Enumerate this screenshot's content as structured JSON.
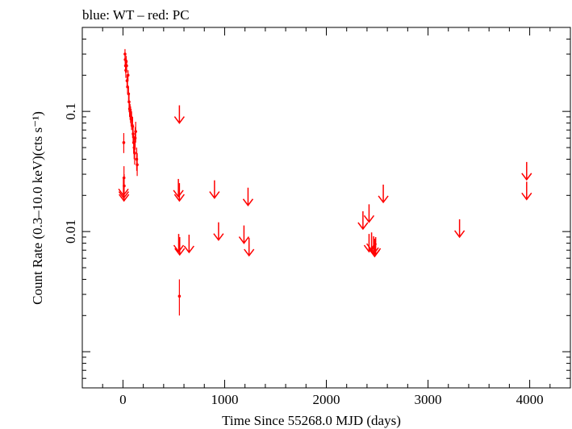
{
  "chart_data": {
    "type": "scatter",
    "title": "blue: WT – red: PC",
    "xlabel": "Time Since 55268.0 MJD (days)",
    "ylabel": "Count Rate (0.3–10.0 keV)(cts s⁻¹)",
    "xlim": [
      -400,
      4400
    ],
    "ylim": [
      0.0005,
      0.5
    ],
    "yscale": "log",
    "x_ticks": [
      0,
      1000,
      2000,
      3000,
      4000
    ],
    "x_tick_labels": [
      "0",
      "1000",
      "2000",
      "3000",
      "4000"
    ],
    "y_ticks": [
      0.01,
      0.1
    ],
    "y_tick_labels": [
      "0.01",
      "0.1"
    ],
    "grid": false,
    "colors": {
      "pc": "#ff0000",
      "axes": "#000000"
    },
    "series": [
      {
        "type": "points",
        "color": "#ff0000",
        "points": [
          {
            "x": 20,
            "y": 0.3,
            "lo": 0.27,
            "hi": 0.33
          },
          {
            "x": 22,
            "y": 0.27,
            "lo": 0.24,
            "hi": 0.3
          },
          {
            "x": 25,
            "y": 0.24,
            "lo": 0.21,
            "hi": 0.27
          },
          {
            "x": 28,
            "y": 0.22,
            "lo": 0.19,
            "hi": 0.25
          },
          {
            "x": 32,
            "y": 0.26,
            "lo": 0.23,
            "hi": 0.29
          },
          {
            "x": 36,
            "y": 0.24,
            "lo": 0.21,
            "hi": 0.27
          },
          {
            "x": 40,
            "y": 0.18,
            "lo": 0.16,
            "hi": 0.2
          },
          {
            "x": 45,
            "y": 0.16,
            "lo": 0.14,
            "hi": 0.18
          },
          {
            "x": 50,
            "y": 0.2,
            "lo": 0.18,
            "hi": 0.22
          },
          {
            "x": 55,
            "y": 0.14,
            "lo": 0.12,
            "hi": 0.16
          },
          {
            "x": 60,
            "y": 0.12,
            "lo": 0.1,
            "hi": 0.14
          },
          {
            "x": 65,
            "y": 0.105,
            "lo": 0.09,
            "hi": 0.12
          },
          {
            "x": 70,
            "y": 0.1,
            "lo": 0.085,
            "hi": 0.115
          },
          {
            "x": 75,
            "y": 0.095,
            "lo": 0.08,
            "hi": 0.11
          },
          {
            "x": 80,
            "y": 0.09,
            "lo": 0.075,
            "hi": 0.105
          },
          {
            "x": 85,
            "y": 0.085,
            "lo": 0.07,
            "hi": 0.1
          },
          {
            "x": 95,
            "y": 0.075,
            "lo": 0.06,
            "hi": 0.09
          },
          {
            "x": 100,
            "y": 0.065,
            "lo": 0.055,
            "hi": 0.078
          },
          {
            "x": 105,
            "y": 0.055,
            "lo": 0.045,
            "hi": 0.066
          },
          {
            "x": 110,
            "y": 0.05,
            "lo": 0.04,
            "hi": 0.062
          },
          {
            "x": 115,
            "y": 0.045,
            "lo": 0.036,
            "hi": 0.056
          },
          {
            "x": 120,
            "y": 0.06,
            "lo": 0.048,
            "hi": 0.074
          },
          {
            "x": 125,
            "y": 0.068,
            "lo": 0.055,
            "hi": 0.082
          },
          {
            "x": 135,
            "y": 0.04,
            "lo": 0.032,
            "hi": 0.05
          },
          {
            "x": 140,
            "y": 0.036,
            "lo": 0.029,
            "hi": 0.045
          },
          {
            "x": 8,
            "y": 0.055,
            "lo": 0.045,
            "hi": 0.066
          },
          {
            "x": 10,
            "y": 0.028,
            "lo": 0.022,
            "hi": 0.035
          },
          {
            "x": 12,
            "y": 0.024,
            "lo": 0.019,
            "hi": 0.03
          },
          {
            "x": 555,
            "y": 0.0029,
            "lo": 0.002,
            "hi": 0.004
          }
        ]
      },
      {
        "type": "upper_limits",
        "color": "#ff0000",
        "points": [
          {
            "x": 5,
            "y": 0.02
          },
          {
            "x": 8,
            "y": 0.019
          },
          {
            "x": 10,
            "y": 0.018
          },
          {
            "x": 555,
            "y": 0.08
          },
          {
            "x": 545,
            "y": 0.0195
          },
          {
            "x": 555,
            "y": 0.018
          },
          {
            "x": 548,
            "y": 0.0068
          },
          {
            "x": 558,
            "y": 0.0064
          },
          {
            "x": 650,
            "y": 0.0067
          },
          {
            "x": 900,
            "y": 0.019
          },
          {
            "x": 940,
            "y": 0.0085
          },
          {
            "x": 1190,
            "y": 0.008
          },
          {
            "x": 1230,
            "y": 0.0165
          },
          {
            "x": 1240,
            "y": 0.0063
          },
          {
            "x": 2360,
            "y": 0.0105
          },
          {
            "x": 2420,
            "y": 0.012
          },
          {
            "x": 2420,
            "y": 0.0068
          },
          {
            "x": 2445,
            "y": 0.007
          },
          {
            "x": 2465,
            "y": 0.0065
          },
          {
            "x": 2475,
            "y": 0.0062
          },
          {
            "x": 2485,
            "y": 0.0064
          },
          {
            "x": 2560,
            "y": 0.0175
          },
          {
            "x": 3310,
            "y": 0.009
          },
          {
            "x": 3970,
            "y": 0.027
          },
          {
            "x": 3970,
            "y": 0.0185
          }
        ]
      }
    ]
  }
}
